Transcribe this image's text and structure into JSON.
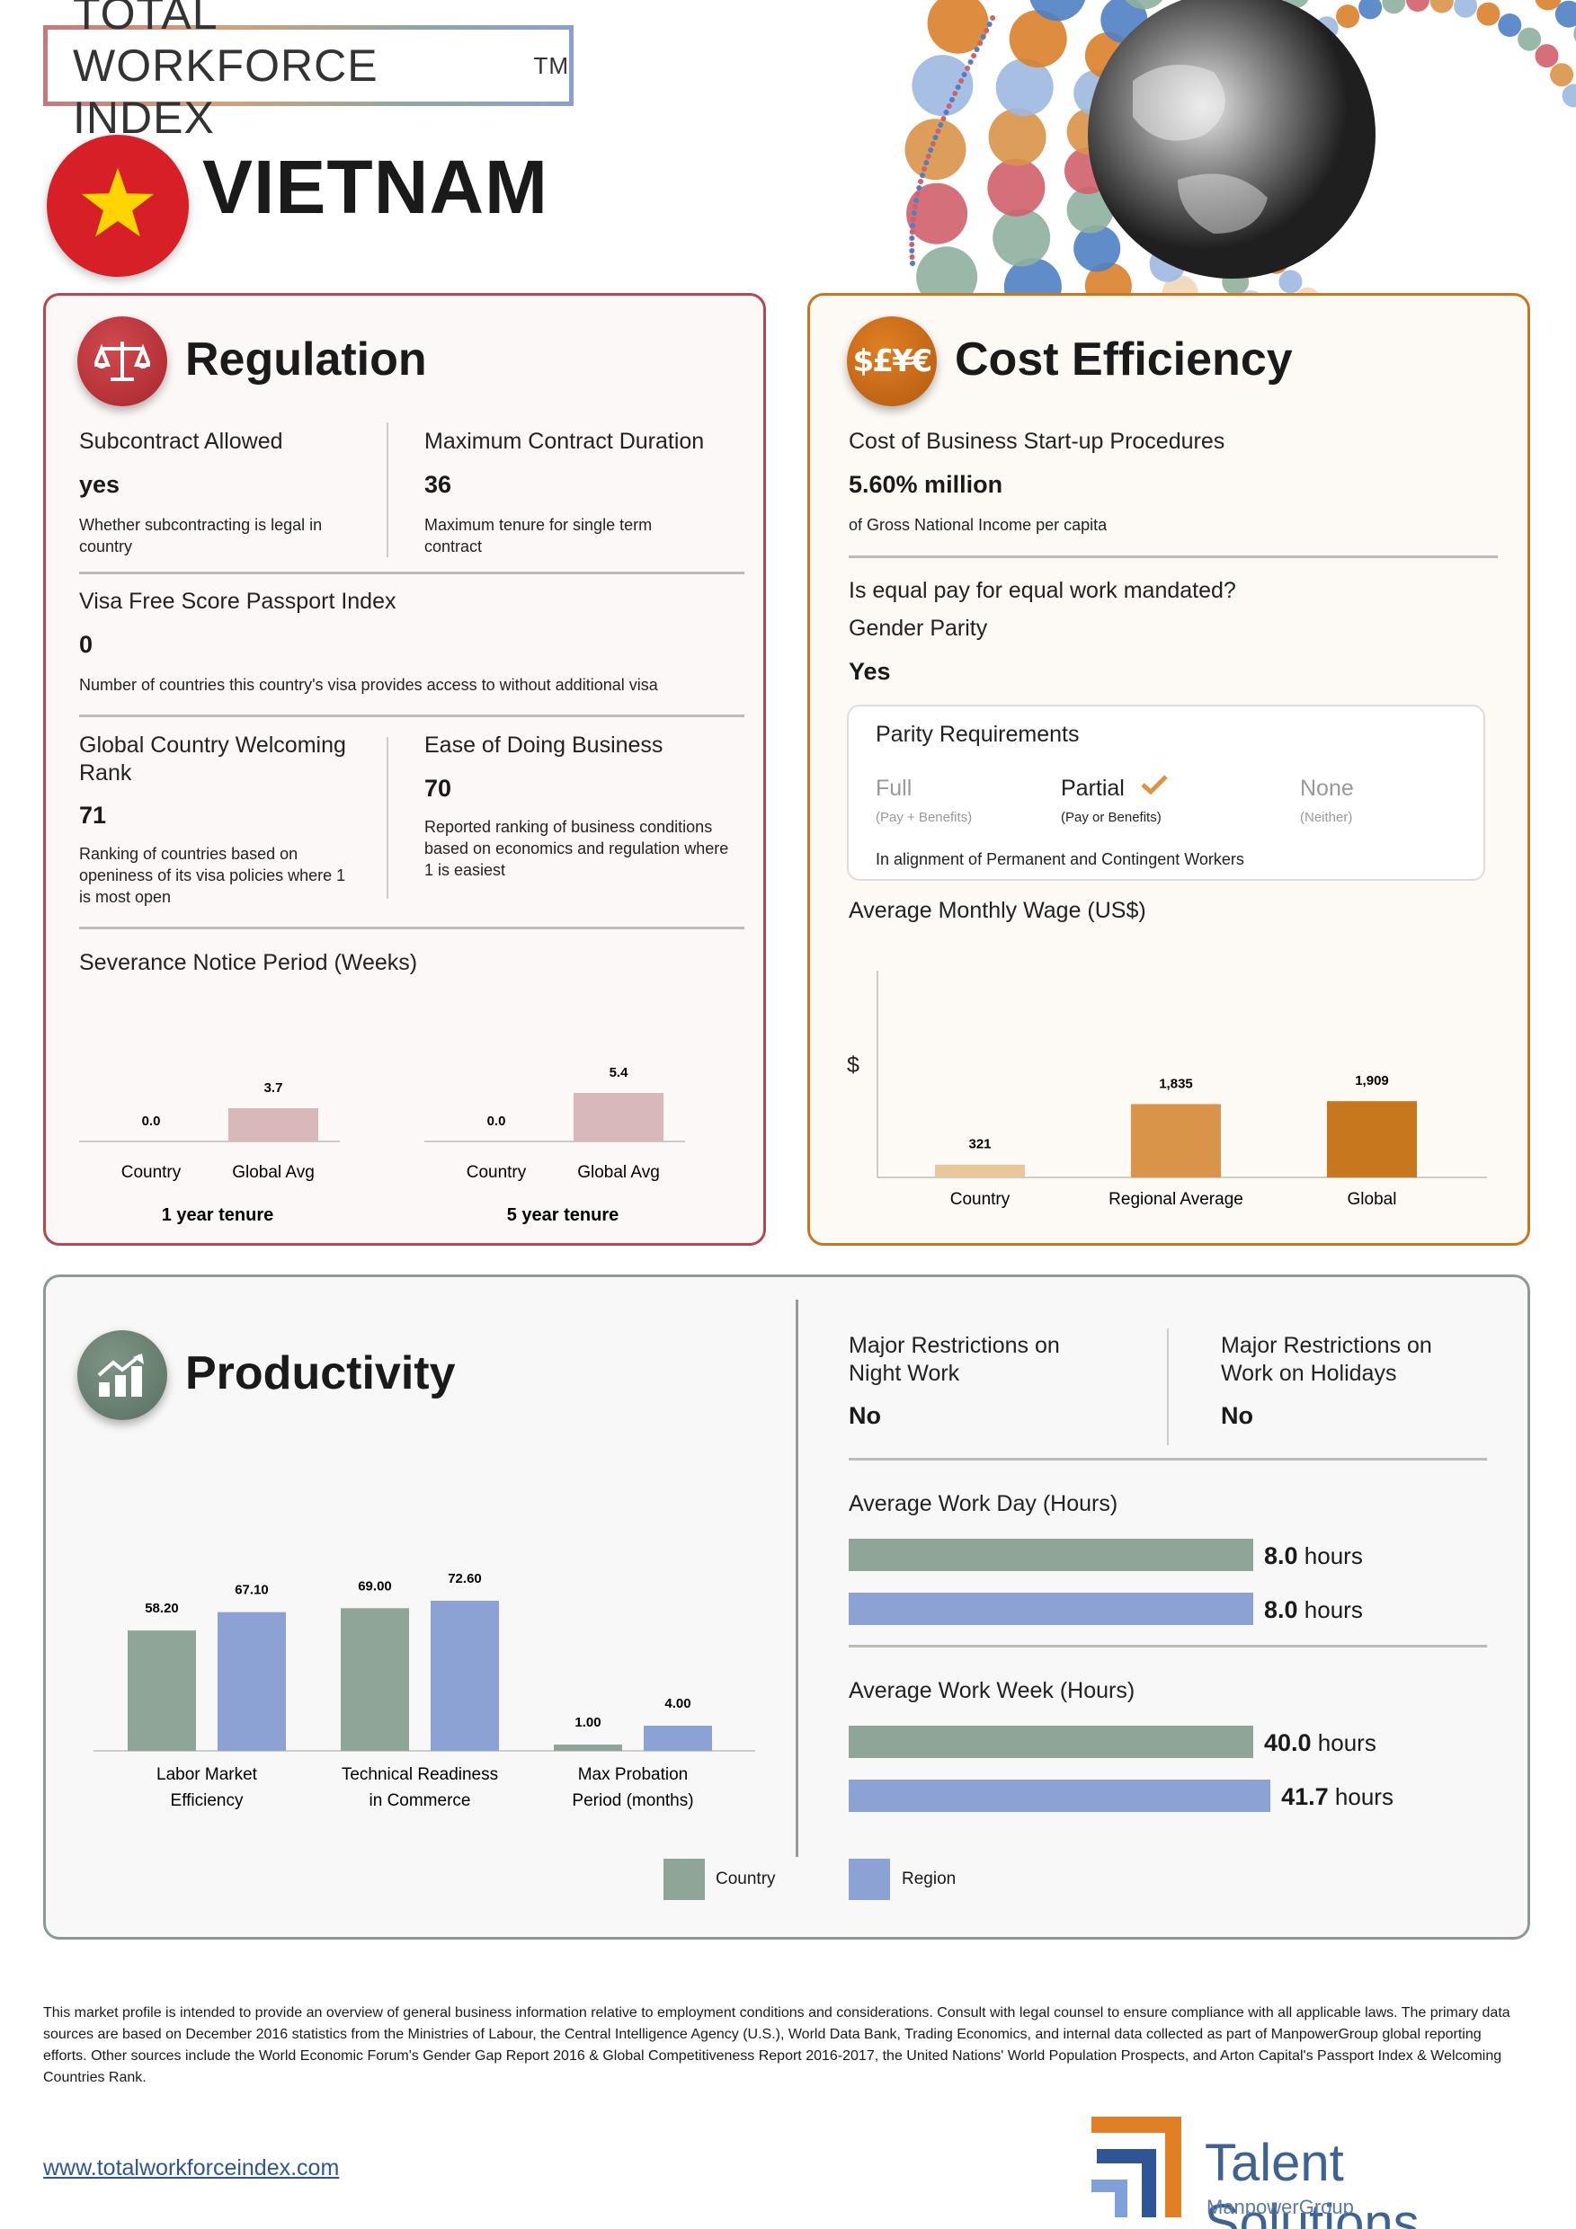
{
  "header": {
    "brand": "TOTAL WORKFORCE INDEX",
    "tm": "TM",
    "country": "VIETNAM"
  },
  "regulation": {
    "title": "Regulation",
    "subcontract": {
      "label": "Subcontract Allowed",
      "value": "yes",
      "desc": "Whether subcontracting is legal in country"
    },
    "max_contract": {
      "label": "Maximum Contract Duration",
      "value": "36",
      "desc": "Maximum tenure for single term contract"
    },
    "visa": {
      "label": "Visa Free Score Passport Index",
      "value": "0",
      "desc": "Number of countries this country's visa provides access to without additional visa"
    },
    "welcoming": {
      "label": "Global Country Welcoming Rank",
      "value": "71",
      "desc": "Ranking of countries based on openiness of its visa policies where 1 is most open"
    },
    "ease": {
      "label": "Ease of Doing Business",
      "value": "70",
      "desc": "Reported ranking of business conditions based on economics and regulation where 1 is easiest"
    },
    "severance": {
      "label": "Severance Notice Period (Weeks)"
    }
  },
  "cost": {
    "title": "Cost Efficiency",
    "startup": {
      "label": "Cost of Business Start-up Procedures",
      "value": "5.60% million",
      "desc": "of Gross National Income per capita"
    },
    "equal_pay": {
      "question": "Is equal pay for equal work mandated?",
      "label": "Gender Parity",
      "value": "Yes"
    },
    "parity": {
      "title": "Parity Requirements",
      "options": [
        {
          "name": "Full",
          "sub": "(Pay + Benefits)",
          "selected": false
        },
        {
          "name": "Partial",
          "sub": "(Pay or Benefits)",
          "selected": true
        },
        {
          "name": "None",
          "sub": "(Neither)",
          "selected": false
        }
      ],
      "note": "In alignment of Permanent and Contingent Workers"
    },
    "wage": {
      "label": "Average Monthly Wage (US$)",
      "unit": "$"
    }
  },
  "productivity": {
    "title": "Productivity",
    "night": {
      "label": "Major Restrictions on Night Work",
      "value": "No"
    },
    "holiday": {
      "label": "Major Restrictions on Work on Holidays",
      "value": "No"
    },
    "workday": {
      "label": "Average Work Day (Hours)",
      "country": "8.0",
      "region": "8.0",
      "unit": "hours"
    },
    "workweek": {
      "label": "Average Work Week (Hours)",
      "country": "40.0",
      "region": "41.7",
      "unit": "hours"
    },
    "legend": {
      "country": "Country",
      "region": "Region"
    }
  },
  "chart_data": [
    {
      "type": "bar",
      "title": "Severance Notice Period (Weeks)",
      "groups": [
        {
          "name": "1 year tenure",
          "categories": [
            "Country",
            "Global Avg"
          ],
          "values": [
            0.0,
            3.7
          ],
          "labels": [
            "0.0",
            "3.7"
          ]
        },
        {
          "name": "5 year tenure",
          "categories": [
            "Country",
            "Global Avg"
          ],
          "values": [
            0.0,
            5.4
          ],
          "labels": [
            "0.0",
            "5.4"
          ]
        }
      ],
      "colors": [
        "#d9b8ba"
      ]
    },
    {
      "type": "bar",
      "title": "Average Monthly Wage (US$)",
      "ylabel": "$",
      "categories": [
        "Country",
        "Regional Average",
        "Global"
      ],
      "values": [
        321,
        1835,
        1909
      ],
      "labels": [
        "321",
        "1,835",
        "1,909"
      ],
      "colors": [
        "#e8c79a",
        "#d9944a",
        "#c7781e"
      ]
    },
    {
      "type": "bar",
      "categories": [
        "Labor Market Efficiency",
        "Technical Readiness in Commerce",
        "Max Probation Period (months)"
      ],
      "category_lines": [
        [
          "Labor Market",
          "Efficiency"
        ],
        [
          "Technical Readiness",
          "in Commerce"
        ],
        [
          "Max Probation",
          "Period (months)"
        ]
      ],
      "series": [
        {
          "name": "Country",
          "values": [
            58.2,
            69.0,
            1.0
          ],
          "labels": [
            "58.20",
            "69.00",
            "1.00"
          ],
          "color": "#8fa598"
        },
        {
          "name": "Region",
          "values": [
            67.1,
            72.6,
            4.0
          ],
          "labels": [
            "67.10",
            "72.60",
            "4.00"
          ],
          "color": "#8ca1d4"
        }
      ]
    },
    {
      "type": "bar",
      "orientation": "horizontal",
      "title": "Average Work Day (Hours)",
      "series": [
        {
          "name": "Country",
          "values": [
            8.0
          ]
        },
        {
          "name": "Region",
          "values": [
            8.0
          ]
        }
      ]
    },
    {
      "type": "bar",
      "orientation": "horizontal",
      "title": "Average Work Week (Hours)",
      "series": [
        {
          "name": "Country",
          "values": [
            40.0
          ]
        },
        {
          "name": "Region",
          "values": [
            41.7
          ]
        }
      ]
    }
  ],
  "footer": {
    "text": "This market profile is intended to provide an overview of general business information relative to employment conditions and considerations. Consult with legal counsel to ensure compliance with all applicable laws. The primary data sources are based on December 2016 statistics from the Ministries of Labour, the Central Intelligence Agency (U.S.), World Data Bank, Trading Economics, and internal data collected as part of ManpowerGroup global reporting efforts. Other sources include the World Economic Forum's  Gender Gap Report 2016 & Global Competitiveness Report 2016-2017, the United Nations' World Population Prospects, and Arton Capital's Passport Index & Welcoming Countries Rank.",
    "url": "www.totalworkforceindex.com",
    "logo_main": "Talent Solutions",
    "logo_sub": "ManpowerGroup"
  },
  "colors": {
    "regulation": "#b5474f",
    "cost": "#c7781e",
    "productivity": "#6e8577",
    "country": "#8fa598",
    "region": "#8ca1d4"
  }
}
